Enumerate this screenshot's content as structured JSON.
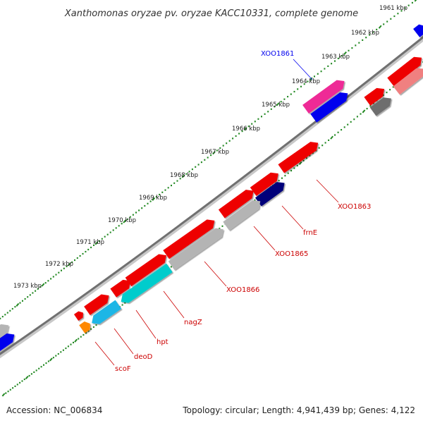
{
  "title": "Xanthomonas oryzae pv. oryzae KACC10331, complete genome",
  "footer": {
    "accession": "Accession: NC_006834",
    "stats": "Topology: circular; Length: 4,941,439 bp; Genes: 4,122"
  },
  "ticks": [
    {
      "label": "1961 kbp"
    },
    {
      "label": "1962 kbp"
    },
    {
      "label": "1963 kbp"
    },
    {
      "label": "1964 kbp"
    },
    {
      "label": "1965 kbp"
    },
    {
      "label": "1966 kbp"
    },
    {
      "label": "1967 kbp"
    },
    {
      "label": "1968 kbp"
    },
    {
      "label": "1969 kbp"
    },
    {
      "label": "1970 kbp"
    },
    {
      "label": "1971 kbp"
    },
    {
      "label": "1972 kbp"
    },
    {
      "label": "1973 kbp"
    }
  ],
  "gene_labels": [
    {
      "name": "XOO1861",
      "color": "#0000ee"
    },
    {
      "name": "XOO1863",
      "color": "#cc0000"
    },
    {
      "name": "frnE",
      "color": "#cc0000"
    },
    {
      "name": "XOO1865",
      "color": "#cc0000"
    },
    {
      "name": "XOO1866",
      "color": "#cc0000"
    },
    {
      "name": "nagZ",
      "color": "#cc0000"
    },
    {
      "name": "hpt",
      "color": "#cc0000"
    },
    {
      "name": "deoD",
      "color": "#cc0000"
    },
    {
      "name": "scoF",
      "color": "#cc0000"
    }
  ],
  "colors": {
    "red": "#ee0000",
    "light_red": "#f08080",
    "gray": "#b4b4b4",
    "dark_gray": "#6e6e6e",
    "blue": "#0000ee",
    "navy": "#00007a",
    "cyan": "#1ab6e6",
    "teal": "#00cccc",
    "magenta": "#ee2a96",
    "orange": "#ff8800",
    "tick_green": "#228822"
  }
}
